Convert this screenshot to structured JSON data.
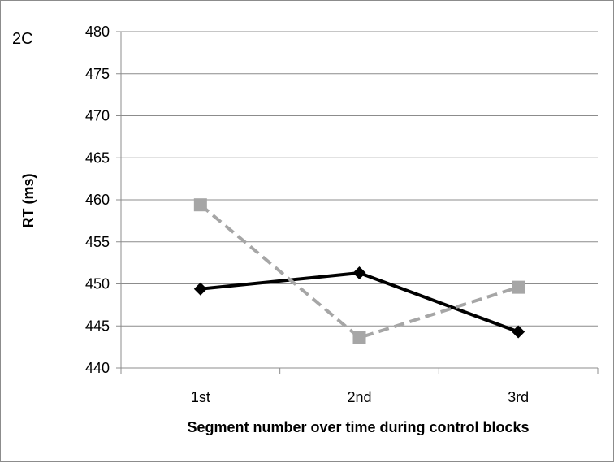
{
  "chart_data": {
    "type": "line",
    "panel_label": "2C",
    "title": "",
    "xlabel": "Segment number over time during control blocks",
    "ylabel": "RT (ms)",
    "categories": [
      "1st",
      "2nd",
      "3rd"
    ],
    "ylim": [
      440,
      480
    ],
    "yticks": [
      440,
      445,
      450,
      455,
      460,
      465,
      470,
      475,
      480
    ],
    "grid": "horizontal",
    "legend": "none",
    "series": [
      {
        "values": [
          449.4,
          451.3,
          444.3
        ],
        "color": "#000000",
        "line_style": "solid",
        "marker": "diamond"
      },
      {
        "values": [
          459.4,
          443.6,
          449.6
        ],
        "color": "#a6a6a6",
        "line_style": "dashed",
        "marker": "square"
      }
    ]
  }
}
